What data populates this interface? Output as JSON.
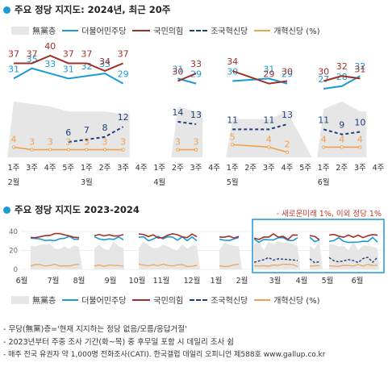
{
  "colors": {
    "dem": "#1a9ad6",
    "ppp": "#a0302a",
    "rebuild": "#1f3e7c",
    "reform": "#f0a050",
    "none": "#e6e6e6",
    "accent": "#1a9ad6"
  },
  "title1": "주요 정당 지지도: 2024년, 최근 20주",
  "title2": "주요 정당 지지도 2023-2024",
  "legend": {
    "none": "無黨층",
    "dem": "더불어민주당",
    "ppp": "국민의힘",
    "rebuild": "조국혁신당",
    "reform": "개혁신당 (%)"
  },
  "footnote": "- 새로운미래 1%, 이외 정당 1%",
  "notes": [
    "- 무당(無黨)층='현재 지지하는 정당 없음/모름/응답거절'",
    "- 2023년부터 주중 조사 기간(화~목) 중 후무일 포함 시 데일리 조사 쉼",
    "- 매주 전국 유권자 약 1,000명 전화조사(CATI). 한국갤럽 데일리 오피니언 제588호 www.gallup.co.kr"
  ],
  "chart_data": [
    {
      "type": "line",
      "title": "주요 정당 지지도: 2024년, 최근 20주",
      "x": [
        "1주",
        "3주",
        "4주",
        "5주",
        "1주",
        "2주",
        "3주",
        "4주",
        "1주",
        "2주",
        "3주",
        "4주",
        "1주",
        "2주",
        "3주",
        "4주",
        "5주",
        "1주",
        "2주",
        "3주",
        "4주"
      ],
      "month_labels": [
        {
          "label": "2월",
          "at": 0
        },
        {
          "label": "3월",
          "at": 4
        },
        {
          "label": "4월",
          "at": 8
        },
        {
          "label": "5월",
          "at": 12
        },
        {
          "label": "6월",
          "at": 17
        }
      ],
      "ylim": [
        0,
        50
      ],
      "series": [
        {
          "name": "더불어민주당",
          "key": "dem",
          "values": [
            31,
            35,
            33,
            31,
            32,
            33,
            29,
            null,
            null,
            31,
            29,
            null,
            30,
            null,
            31,
            29,
            null,
            27,
            28,
            32,
            null
          ]
        },
        {
          "name": "국민의힘",
          "key": "ppp",
          "values": [
            37,
            37,
            40,
            37,
            37,
            34,
            37,
            null,
            null,
            30,
            33,
            null,
            34,
            null,
            29,
            30,
            null,
            30,
            32,
            31,
            null
          ]
        },
        {
          "name": "조국혁신당",
          "key": "rebuild",
          "values": [
            null,
            null,
            null,
            6,
            7,
            8,
            12,
            null,
            null,
            14,
            13,
            null,
            11,
            null,
            11,
            13,
            null,
            11,
            9,
            10,
            null
          ]
        },
        {
          "name": "개혁신당",
          "key": "reform",
          "values": [
            4,
            3,
            3,
            3,
            3,
            3,
            3,
            null,
            null,
            3,
            3,
            null,
            5,
            null,
            4,
            2,
            null,
            4,
            4,
            4,
            null
          ]
        },
        {
          "name": "無黨층",
          "key": "none",
          "values": [
            22,
            21,
            20,
            18,
            18,
            18,
            17,
            null,
            null,
            20,
            18,
            null,
            15,
            null,
            15,
            18,
            null,
            19,
            22,
            18,
            null
          ]
        }
      ]
    },
    {
      "type": "line",
      "title": "주요 정당 지지도 2023-2024",
      "categories": [
        "6월",
        "7월",
        "8월",
        "9월",
        "10월",
        "11월",
        "12월",
        "1월",
        "2월",
        "3월",
        "4월",
        "5월",
        "6월"
      ],
      "yticks": [
        0,
        20,
        40
      ],
      "ylim": [
        0,
        45
      ],
      "highlight": "최근 20주"
    }
  ]
}
